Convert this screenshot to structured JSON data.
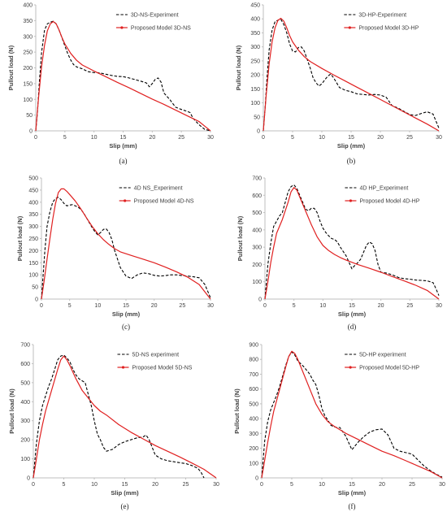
{
  "figure": {
    "colors": {
      "experiment": "#000000",
      "model": "#e02020",
      "axis": "#bfbfbf",
      "text": "#404040"
    }
  },
  "chart_data": [
    {
      "type": "line",
      "caption": "(a)",
      "xlabel": "Slip (mm)",
      "ylabel": "Pullout load (N)",
      "xlim": [
        0,
        30
      ],
      "ylim": [
        0,
        400
      ],
      "xticks": [
        0,
        5,
        10,
        15,
        20,
        25,
        30
      ],
      "yticks": [
        0,
        50,
        100,
        150,
        200,
        250,
        300,
        350,
        400
      ],
      "grid": false,
      "legend_position": "top-right",
      "series": [
        {
          "name": "3D-NS-Experiment",
          "style": "dashed",
          "x": [
            0,
            0.3,
            0.6,
            1,
            1.5,
            2,
            2.5,
            3,
            3.5,
            4,
            4.5,
            5,
            5.5,
            6,
            6.5,
            7,
            8,
            9,
            10,
            11,
            12,
            13,
            14,
            15,
            16,
            17,
            18,
            19,
            19.5,
            20,
            20.5,
            21,
            21.5,
            22,
            23,
            24,
            25,
            26,
            26.5,
            27,
            28,
            29,
            30
          ],
          "y": [
            0,
            60,
            150,
            250,
            320,
            340,
            345,
            348,
            340,
            320,
            295,
            270,
            245,
            225,
            210,
            203,
            197,
            188,
            185,
            184,
            180,
            176,
            173,
            172,
            168,
            163,
            158,
            152,
            140,
            150,
            163,
            168,
            155,
            120,
            100,
            75,
            68,
            62,
            58,
            40,
            20,
            5,
            0
          ]
        },
        {
          "name": "Proposed Model 3D-NS",
          "style": "solid",
          "x": [
            0,
            0.5,
            1,
            1.5,
            2,
            2.5,
            3,
            3.5,
            4,
            4.5,
            5,
            6,
            7,
            8,
            10,
            12,
            14,
            16,
            18,
            20,
            22,
            24,
            26,
            28,
            30
          ],
          "y": [
            0,
            110,
            205,
            272,
            318,
            340,
            347,
            340,
            320,
            296,
            276,
            246,
            224,
            209,
            190,
            172,
            154,
            137,
            119,
            101,
            84,
            66,
            48,
            30,
            0
          ]
        }
      ]
    },
    {
      "type": "line",
      "caption": "(b)",
      "xlabel": "Slip (mm)",
      "ylabel": "Pullout load (N)",
      "xlim": [
        0,
        30
      ],
      "ylim": [
        0,
        450
      ],
      "xticks": [
        0,
        5,
        10,
        15,
        20,
        25,
        30
      ],
      "yticks": [
        0,
        50,
        100,
        150,
        200,
        250,
        300,
        350,
        400,
        450
      ],
      "grid": false,
      "legend_position": "top-right",
      "series": [
        {
          "name": "3D-HP-Experiment",
          "style": "dashed",
          "x": [
            0,
            0.3,
            0.6,
            1,
            1.5,
            2,
            2.5,
            3,
            3.5,
            4,
            4.5,
            5,
            5.5,
            6,
            6.5,
            7,
            7.5,
            8,
            8.5,
            9,
            9.5,
            10,
            10.5,
            11,
            11.5,
            12,
            13,
            14,
            15,
            16,
            17,
            18,
            19,
            20,
            21,
            22,
            23,
            24,
            25,
            26,
            27,
            28,
            29,
            30
          ],
          "y": [
            0,
            80,
            180,
            290,
            360,
            390,
            395,
            398,
            380,
            350,
            310,
            285,
            282,
            298,
            300,
            285,
            255,
            225,
            190,
            172,
            160,
            168,
            182,
            195,
            203,
            190,
            155,
            145,
            140,
            132,
            130,
            128,
            130,
            128,
            120,
            90,
            82,
            70,
            58,
            55,
            62,
            68,
            60,
            10
          ]
        },
        {
          "name": "Proposed Model 3D-HP",
          "style": "solid",
          "x": [
            0,
            0.5,
            1,
            1.5,
            2,
            2.5,
            3,
            3.5,
            4,
            4.5,
            5,
            6,
            7,
            8,
            10,
            12,
            14,
            16,
            18,
            20,
            22,
            24,
            26,
            28,
            30
          ],
          "y": [
            0,
            130,
            240,
            318,
            368,
            395,
            402,
            392,
            368,
            340,
            318,
            288,
            265,
            248,
            223,
            200,
            178,
            156,
            134,
            112,
            90,
            68,
            46,
            24,
            0
          ]
        }
      ]
    },
    {
      "type": "line",
      "caption": "(c)",
      "xlabel": "Slip (mm)",
      "ylabel": "Pullout load (N)",
      "xlim": [
        0,
        30
      ],
      "ylim": [
        0,
        500
      ],
      "xticks": [
        0,
        5,
        10,
        15,
        20,
        25,
        30
      ],
      "yticks": [
        0,
        50,
        100,
        150,
        200,
        250,
        300,
        350,
        400,
        450,
        500
      ],
      "grid": false,
      "legend_position": "top-right",
      "series": [
        {
          "name": "4D NS_Experiment",
          "style": "dashed",
          "x": [
            0,
            0.3,
            0.6,
            1,
            1.5,
            2,
            2.5,
            3,
            3.5,
            4,
            4.5,
            5,
            5.5,
            6,
            6.5,
            7,
            7.5,
            8,
            8.5,
            9,
            9.5,
            10,
            10.5,
            11,
            11.5,
            12,
            12.5,
            13,
            14,
            15,
            16,
            17,
            18,
            19,
            20,
            21,
            22,
            23,
            24,
            25,
            26,
            27,
            28,
            29,
            30
          ],
          "y": [
            0,
            100,
            200,
            300,
            360,
            400,
            415,
            420,
            410,
            395,
            385,
            388,
            390,
            385,
            380,
            370,
            355,
            335,
            315,
            295,
            278,
            265,
            275,
            288,
            290,
            275,
            245,
            200,
            130,
            95,
            85,
            100,
            108,
            105,
            98,
            95,
            97,
            100,
            100,
            97,
            95,
            92,
            88,
            60,
            5
          ]
        },
        {
          "name": "Proposed Model 4D-NS",
          "style": "solid",
          "x": [
            0,
            0.5,
            1,
            1.5,
            2,
            2.5,
            3,
            3.5,
            4,
            4.5,
            5,
            6,
            7,
            8,
            9,
            10,
            11,
            12,
            13,
            14,
            16,
            18,
            20,
            22,
            24,
            26,
            28,
            30
          ],
          "y": [
            0,
            80,
            165,
            250,
            330,
            395,
            440,
            455,
            455,
            445,
            432,
            405,
            372,
            335,
            300,
            270,
            245,
            225,
            208,
            195,
            180,
            165,
            150,
            132,
            112,
            90,
            60,
            0
          ]
        }
      ]
    },
    {
      "type": "line",
      "caption": "(d)",
      "xlabel": "Slip (mm)",
      "ylabel": "Pullout load (N)",
      "xlim": [
        0,
        30
      ],
      "ylim": [
        0,
        700
      ],
      "xticks": [
        0,
        5,
        10,
        15,
        20,
        25,
        30
      ],
      "yticks": [
        0,
        100,
        200,
        300,
        400,
        500,
        600,
        700
      ],
      "grid": false,
      "legend_position": "top-right",
      "series": [
        {
          "name": "4D HP_Experiment",
          "style": "dashed",
          "x": [
            0,
            0.5,
            1,
            1.5,
            2,
            2.5,
            3,
            3.5,
            4,
            4.5,
            5,
            5.5,
            6,
            6.5,
            7,
            7.5,
            8,
            8.5,
            9,
            9.5,
            10,
            10.5,
            11,
            11.5,
            12,
            12.5,
            13,
            14,
            15,
            15.5,
            16,
            16.5,
            17,
            17.5,
            18,
            18.5,
            19,
            19.5,
            20,
            21,
            22,
            23,
            24,
            25,
            26,
            27,
            28,
            28.5,
            29,
            29.5,
            30
          ],
          "y": [
            0,
            200,
            320,
            420,
            450,
            480,
            500,
            560,
            620,
            650,
            660,
            640,
            600,
            560,
            520,
            510,
            525,
            525,
            500,
            450,
            410,
            385,
            365,
            350,
            345,
            330,
            300,
            250,
            175,
            195,
            210,
            230,
            270,
            310,
            330,
            320,
            280,
            200,
            155,
            150,
            140,
            125,
            118,
            115,
            110,
            108,
            105,
            100,
            95,
            60,
            20
          ]
        },
        {
          "name": "Proposed Model 4D-HP",
          "style": "solid",
          "x": [
            0,
            0.5,
            1,
            1.5,
            2,
            3,
            4,
            4.5,
            5,
            5.5,
            6,
            7,
            8,
            9,
            10,
            11,
            12,
            13,
            14,
            16,
            18,
            20,
            22,
            24,
            26,
            28,
            30
          ],
          "y": [
            0,
            100,
            210,
            300,
            380,
            460,
            560,
            620,
            645,
            630,
            590,
            510,
            430,
            360,
            310,
            280,
            258,
            240,
            225,
            200,
            178,
            155,
            130,
            105,
            80,
            50,
            0
          ]
        }
      ]
    },
    {
      "type": "line",
      "caption": "(e)",
      "xlabel": "Slip (mm)",
      "ylabel": "Pullout load (N)",
      "xlim": [
        0,
        30
      ],
      "ylim": [
        0,
        700
      ],
      "xticks": [
        0,
        5,
        10,
        15,
        20,
        25,
        30
      ],
      "yticks": [
        0,
        100,
        200,
        300,
        400,
        500,
        600,
        700
      ],
      "grid": false,
      "legend_position": "top-right",
      "series": [
        {
          "name": "5D-NS experiment",
          "style": "dashed",
          "x": [
            0,
            0.5,
            1,
            1.5,
            2,
            2.5,
            3,
            3.5,
            4,
            4.5,
            5,
            5.5,
            6,
            6.5,
            7,
            7.5,
            8,
            8.5,
            9,
            9.5,
            10,
            10.5,
            11,
            11.5,
            12,
            13,
            14,
            15,
            16,
            17,
            18,
            18.5,
            19,
            19.5,
            20,
            21,
            22,
            23,
            24,
            25,
            26,
            27,
            27.5,
            28
          ],
          "y": [
            0,
            180,
            300,
            380,
            430,
            480,
            520,
            570,
            620,
            640,
            645,
            630,
            610,
            570,
            540,
            520,
            510,
            500,
            440,
            380,
            300,
            230,
            200,
            160,
            140,
            150,
            175,
            190,
            200,
            210,
            215,
            225,
            200,
            160,
            120,
            100,
            90,
            85,
            80,
            75,
            65,
            50,
            30,
            0
          ]
        },
        {
          "name": "Proposed Model 5D-NS",
          "style": "solid",
          "x": [
            0,
            0.5,
            1,
            1.5,
            2,
            3,
            4,
            4.5,
            5,
            5.5,
            6,
            7,
            8,
            9,
            10,
            11,
            12,
            14,
            16,
            18,
            20,
            22,
            24,
            26,
            28,
            30
          ],
          "y": [
            0,
            100,
            200,
            280,
            350,
            460,
            570,
            620,
            640,
            620,
            590,
            520,
            460,
            420,
            380,
            350,
            330,
            280,
            240,
            205,
            170,
            140,
            110,
            78,
            45,
            0
          ]
        }
      ]
    },
    {
      "type": "line",
      "caption": "(f)",
      "xlabel": "Slip (mm)",
      "ylabel": "Pullout load (N)",
      "xlim": [
        0,
        30
      ],
      "ylim": [
        0,
        900
      ],
      "xticks": [
        0,
        5,
        10,
        15,
        20,
        25,
        30
      ],
      "yticks": [
        0,
        100,
        200,
        300,
        400,
        500,
        600,
        700,
        800,
        900
      ],
      "grid": false,
      "legend_position": "top-right",
      "series": [
        {
          "name": "5D-HP experiment",
          "style": "dashed",
          "x": [
            0,
            0.5,
            1,
            1.5,
            2,
            2.5,
            3,
            3.5,
            4,
            4.5,
            5,
            5.5,
            6,
            7,
            8,
            8.5,
            9,
            9.5,
            10,
            10.5,
            11,
            11.5,
            12,
            12.5,
            13,
            14,
            15,
            16,
            17,
            18,
            19,
            20,
            21,
            22,
            23,
            24,
            25,
            26,
            27,
            28,
            29,
            30
          ],
          "y": [
            0,
            250,
            380,
            460,
            510,
            560,
            620,
            690,
            760,
            820,
            850,
            830,
            790,
            750,
            700,
            660,
            630,
            560,
            470,
            420,
            390,
            355,
            345,
            340,
            340,
            280,
            190,
            240,
            280,
            310,
            325,
            330,
            290,
            200,
            180,
            170,
            160,
            120,
            80,
            50,
            25,
            5
          ]
        },
        {
          "name": "Proposed Model 5D-HP",
          "style": "solid",
          "x": [
            0,
            0.5,
            1,
            1.5,
            2,
            3,
            4,
            4.5,
            5,
            5.5,
            6,
            7,
            8,
            9,
            10,
            11,
            12,
            14,
            16,
            18,
            20,
            22,
            24,
            26,
            28,
            30
          ],
          "y": [
            0,
            120,
            240,
            350,
            450,
            600,
            750,
            820,
            855,
            840,
            800,
            700,
            600,
            500,
            430,
            380,
            350,
            300,
            260,
            220,
            180,
            150,
            115,
            80,
            45,
            0
          ]
        }
      ]
    }
  ]
}
